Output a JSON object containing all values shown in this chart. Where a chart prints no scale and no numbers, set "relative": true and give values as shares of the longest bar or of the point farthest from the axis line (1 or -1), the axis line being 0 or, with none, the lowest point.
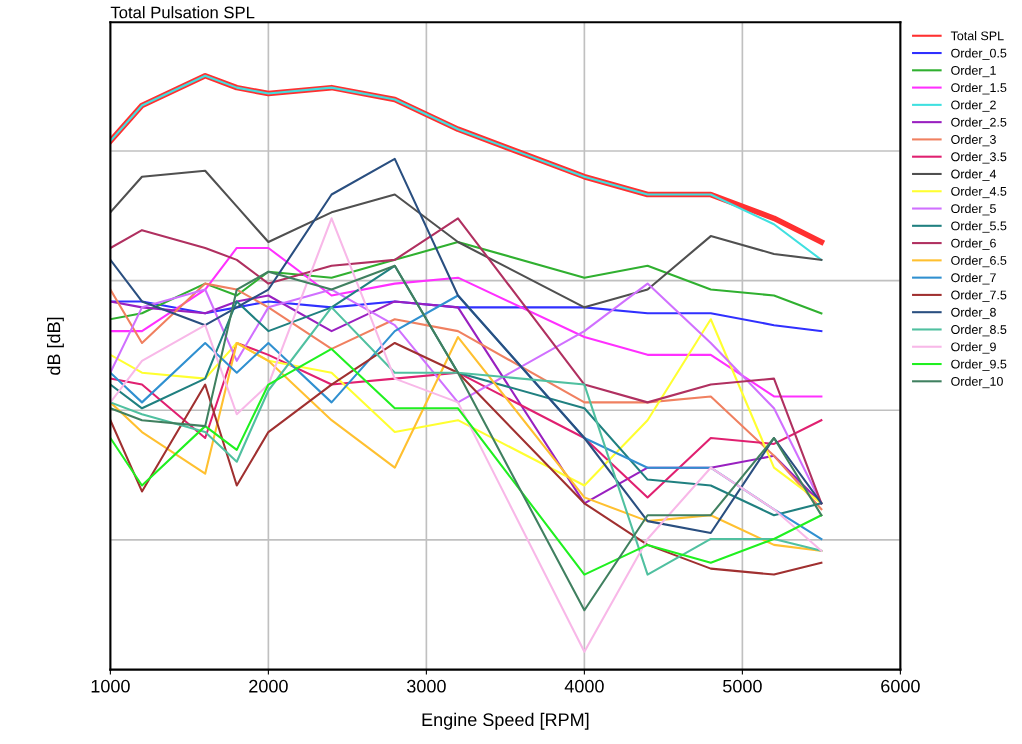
{
  "chart_data": {
    "type": "line",
    "title": "Total Pulsation SPL",
    "xlabel": "Engine Speed [RPM]",
    "ylabel": "dB [dB]",
    "relative": true,
    "x": [
      1000,
      1200,
      1600,
      1800,
      2000,
      2400,
      2800,
      3200,
      4000,
      4400,
      4800,
      5200,
      5500
    ],
    "xlim": [
      1000,
      6000
    ],
    "xticks": [
      1000,
      2000,
      3000,
      4000,
      5000,
      6000
    ],
    "grid": true,
    "legend": "right",
    "marker": "none",
    "line_style": "solid",
    "series": [
      {
        "name": "Total SPL",
        "color": "#ff3030",
        "values": [
          0.89,
          0.95,
          1.0,
          0.98,
          0.97,
          0.98,
          0.96,
          0.91,
          0.83,
          0.8,
          0.8,
          0.76,
          0.72
        ]
      },
      {
        "name": "Order_0.5",
        "color": "#3030ff",
        "values": [
          0.62,
          0.62,
          0.6,
          0.61,
          0.62,
          0.61,
          0.62,
          0.61,
          0.61,
          0.6,
          0.6,
          0.58,
          0.57
        ]
      },
      {
        "name": "Order_1",
        "color": "#30b030",
        "values": [
          0.59,
          0.6,
          0.65,
          0.63,
          0.67,
          0.66,
          0.69,
          0.72,
          0.66,
          0.68,
          0.64,
          0.63,
          0.6
        ]
      },
      {
        "name": "Order_1.5",
        "color": "#ff30ff",
        "values": [
          0.57,
          0.57,
          0.64,
          0.71,
          0.71,
          0.63,
          0.65,
          0.66,
          0.56,
          0.53,
          0.53,
          0.46,
          0.46
        ]
      },
      {
        "name": "Order_2",
        "color": "#40e0e0",
        "values": [
          0.89,
          0.95,
          1.0,
          0.98,
          0.97,
          0.98,
          0.96,
          0.91,
          0.83,
          0.8,
          0.8,
          0.75,
          0.69
        ]
      },
      {
        "name": "Order_2.5",
        "color": "#9920c0",
        "values": [
          0.62,
          0.61,
          0.6,
          0.62,
          0.63,
          0.57,
          0.62,
          0.61,
          0.28,
          0.34,
          0.34,
          0.36,
          0.28
        ]
      },
      {
        "name": "Order_3",
        "color": "#f08060",
        "values": [
          0.64,
          0.55,
          0.65,
          0.64,
          0.61,
          0.54,
          0.59,
          0.57,
          0.45,
          0.45,
          0.46,
          0.36,
          0.27
        ]
      },
      {
        "name": "Order_3.5",
        "color": "#e02070",
        "values": [
          0.49,
          0.48,
          0.39,
          0.55,
          0.53,
          0.48,
          0.49,
          0.5,
          0.39,
          0.29,
          0.39,
          0.38,
          0.42
        ]
      },
      {
        "name": "Order_4",
        "color": "#505050",
        "values": [
          0.77,
          0.83,
          0.84,
          0.78,
          0.72,
          0.77,
          0.8,
          0.72,
          0.61,
          0.64,
          0.73,
          0.7,
          0.69
        ]
      },
      {
        "name": "Order_4.5",
        "color": "#ffff30",
        "values": [
          0.53,
          0.5,
          0.49,
          0.55,
          0.52,
          0.5,
          0.4,
          0.42,
          0.31,
          0.42,
          0.59,
          0.34,
          0.28
        ]
      },
      {
        "name": "Order_5",
        "color": "#d070ff",
        "values": [
          0.5,
          0.61,
          0.64,
          0.52,
          0.61,
          0.64,
          0.58,
          0.45,
          0.57,
          0.65,
          0.55,
          0.44,
          0.28
        ]
      },
      {
        "name": "Order_5.5",
        "color": "#208080",
        "values": [
          0.48,
          0.44,
          0.49,
          0.62,
          0.57,
          0.61,
          0.68,
          0.5,
          0.44,
          0.32,
          0.31,
          0.26,
          0.28
        ]
      },
      {
        "name": "Order_6",
        "color": "#b03060",
        "values": [
          0.71,
          0.74,
          0.71,
          0.69,
          0.65,
          0.68,
          0.69,
          0.76,
          0.48,
          0.45,
          0.48,
          0.49,
          0.28
        ]
      },
      {
        "name": "Order_6.5",
        "color": "#ffc030",
        "values": [
          0.45,
          0.4,
          0.33,
          0.55,
          0.52,
          0.42,
          0.34,
          0.56,
          0.29,
          0.25,
          0.26,
          0.21,
          0.2
        ]
      },
      {
        "name": "Order_7",
        "color": "#3090d0",
        "values": [
          0.5,
          0.45,
          0.55,
          0.5,
          0.55,
          0.45,
          0.57,
          0.63,
          0.39,
          0.34,
          0.34,
          0.27,
          0.22
        ]
      },
      {
        "name": "Order_7.5",
        "color": "#a03030",
        "values": [
          0.42,
          0.3,
          0.48,
          0.31,
          0.4,
          0.48,
          0.55,
          0.5,
          0.28,
          0.21,
          0.17,
          0.16,
          0.18
        ]
      },
      {
        "name": "Order_8",
        "color": "#2a4f80",
        "values": [
          0.69,
          0.62,
          0.58,
          0.61,
          0.64,
          0.8,
          0.86,
          0.63,
          0.39,
          0.25,
          0.23,
          0.39,
          0.28
        ]
      },
      {
        "name": "Order_8.5",
        "color": "#50c0a0",
        "values": [
          0.45,
          0.43,
          0.4,
          0.35,
          0.47,
          0.61,
          0.5,
          0.5,
          0.48,
          0.16,
          0.22,
          0.22,
          0.2
        ]
      },
      {
        "name": "Order_9",
        "color": "#f8b8e8",
        "values": [
          0.45,
          0.52,
          0.58,
          0.43,
          0.48,
          0.76,
          0.49,
          0.45,
          0.03,
          0.22,
          0.34,
          0.27,
          0.2
        ]
      },
      {
        "name": "Order_9.5",
        "color": "#20f020",
        "values": [
          0.39,
          0.31,
          0.41,
          0.37,
          0.48,
          0.54,
          0.44,
          0.44,
          0.16,
          0.21,
          0.18,
          0.22,
          0.26
        ]
      },
      {
        "name": "Order_10",
        "color": "#408060",
        "values": [
          0.44,
          0.42,
          0.41,
          0.64,
          0.67,
          0.64,
          0.68,
          0.5,
          0.1,
          0.26,
          0.26,
          0.39,
          0.26
        ]
      }
    ]
  }
}
